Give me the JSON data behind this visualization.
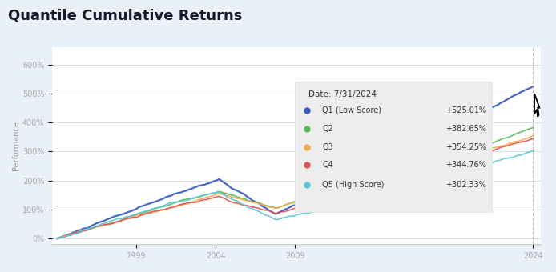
{
  "title": "Quantile Cumulative Returns",
  "ylabel": "Performance",
  "background_color": "#eaf0f8",
  "plot_bg_color": "#ffffff",
  "yticks": [
    0,
    100,
    200,
    300,
    400,
    500,
    600
  ],
  "ytick_labels": [
    "0%",
    "100%",
    "200%",
    "300%",
    "400%",
    "500%",
    "600%"
  ],
  "year_ticks": [
    1999,
    2004,
    2009,
    2024
  ],
  "series": [
    {
      "name": "Q1 (Low Score)",
      "color": "#3a5bbf",
      "final": 525.01,
      "lw": 1.6
    },
    {
      "name": "Q2",
      "color": "#5cb85c",
      "final": 382.65,
      "lw": 1.2
    },
    {
      "name": "Q3",
      "color": "#f0ad4e",
      "final": 354.25,
      "lw": 1.2
    },
    {
      "name": "Q4",
      "color": "#e05555",
      "final": 344.76,
      "lw": 1.2
    },
    {
      "name": "Q5 (High Score)",
      "color": "#5bc8d5",
      "final": 302.33,
      "lw": 1.2
    }
  ],
  "tooltip_date": "Date: 7/31/2024",
  "tooltip_values": [
    "+525.01%",
    "+382.65%",
    "+354.25%",
    "+344.76%",
    "+302.33%"
  ],
  "n_points": 330,
  "start_year": 1994,
  "end_year": 2024
}
